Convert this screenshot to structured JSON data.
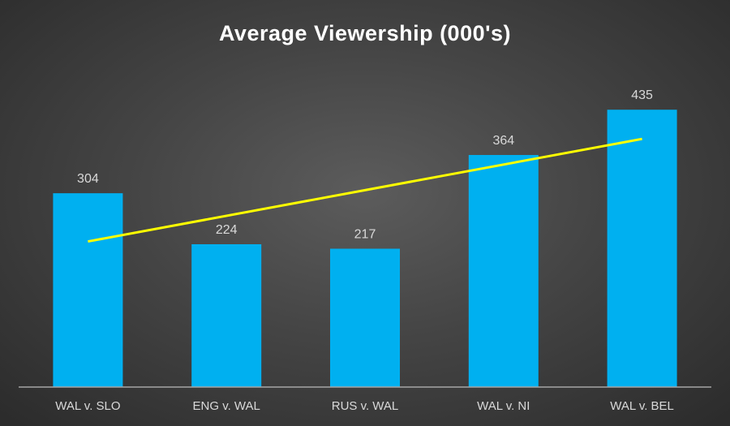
{
  "chart_data": {
    "type": "bar",
    "title": "Average Viewership (000's)",
    "categories": [
      "WAL v. SLO",
      "ENG v. WAL",
      "RUS v. WAL",
      "WAL v. NI",
      "WAL v. BEL"
    ],
    "values": [
      304,
      224,
      217,
      364,
      435
    ],
    "data_labels": [
      "304",
      "224",
      "217",
      "364",
      "435"
    ],
    "trendline": {
      "type": "linear",
      "color": "#ffff00"
    },
    "bar_color": "#00b0f0",
    "xlabel": "",
    "ylabel": "",
    "ylim": [
      0,
      560
    ],
    "grid": false,
    "legend": "none"
  }
}
